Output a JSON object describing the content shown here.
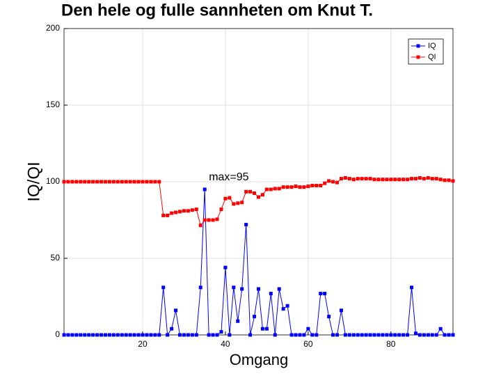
{
  "chart_data": {
    "type": "line",
    "title": "Den hele og fulle sannheten om Knut T.",
    "xlabel": "Omgang",
    "ylabel": "IQ/QI",
    "annotation": "max=95",
    "x": [
      1,
      2,
      3,
      4,
      5,
      6,
      7,
      8,
      9,
      10,
      11,
      12,
      13,
      14,
      15,
      16,
      17,
      18,
      19,
      20,
      21,
      22,
      23,
      24,
      25,
      26,
      27,
      28,
      29,
      30,
      31,
      32,
      33,
      34,
      35,
      36,
      37,
      38,
      39,
      40,
      41,
      42,
      43,
      44,
      45,
      46,
      47,
      48,
      49,
      50,
      51,
      52,
      53,
      54,
      55,
      56,
      57,
      58,
      59,
      60,
      61,
      62,
      63,
      64,
      65,
      66,
      67,
      68,
      69,
      70,
      71,
      72,
      73,
      74,
      75,
      76,
      77,
      78,
      79,
      80,
      81,
      82,
      83,
      84,
      85,
      86,
      87,
      88,
      89,
      90,
      91,
      92,
      93,
      94,
      95
    ],
    "series": [
      {
        "name": "IQ",
        "color": "#0000ff",
        "values": [
          0,
          0,
          0,
          0,
          0,
          0,
          0,
          0,
          0,
          0,
          0,
          0,
          0,
          0,
          0,
          0,
          0,
          0,
          0,
          0,
          0,
          0,
          0,
          0,
          31,
          0,
          4,
          16,
          0,
          0,
          0,
          0,
          0,
          31,
          95,
          0,
          0,
          0,
          2,
          44,
          0,
          31,
          9,
          30,
          72,
          0,
          12,
          30,
          4,
          4,
          27,
          0,
          30,
          17,
          19,
          0,
          0,
          0,
          0,
          4,
          0,
          0,
          27,
          27,
          12,
          0,
          0,
          16,
          0,
          0,
          0,
          0,
          0,
          0,
          0,
          0,
          0,
          0,
          0,
          0,
          0,
          0,
          0,
          0,
          31,
          1,
          0,
          0,
          0,
          0,
          0,
          4,
          0,
          0,
          0
        ]
      },
      {
        "name": "QI",
        "color": "#ff0000",
        "values": [
          100,
          100,
          100,
          100,
          100,
          100,
          100,
          100,
          100,
          100,
          100,
          100,
          100,
          100,
          100,
          100,
          100,
          100,
          100,
          100,
          100,
          100,
          100,
          100,
          78,
          78,
          79.5,
          80,
          80.5,
          81,
          81,
          81.5,
          82,
          71.5,
          75,
          75,
          75,
          75.5,
          82,
          89,
          89.5,
          85.5,
          86,
          86.5,
          93.5,
          93.5,
          92.5,
          90,
          91.5,
          95,
          95,
          95.5,
          95.5,
          96.5,
          96.5,
          96.5,
          97,
          96.5,
          96.5,
          97,
          97.5,
          97.5,
          97.5,
          99,
          100.5,
          100,
          99.5,
          102,
          102.5,
          102,
          101.5,
          102,
          102,
          102,
          102,
          101.5,
          101.5,
          101.5,
          101.5,
          101.5,
          101.5,
          101.5,
          101.5,
          101.5,
          102,
          102,
          102.5,
          102,
          102.5,
          102,
          102,
          101.5,
          101,
          101,
          100.5
        ]
      }
    ],
    "xlim": [
      1,
      95
    ],
    "ylim": [
      0,
      200
    ],
    "xticks": [
      20,
      40,
      60,
      80
    ],
    "yticks": [
      0,
      50,
      100,
      150,
      200
    ],
    "grid": true,
    "legend": "northeast"
  }
}
